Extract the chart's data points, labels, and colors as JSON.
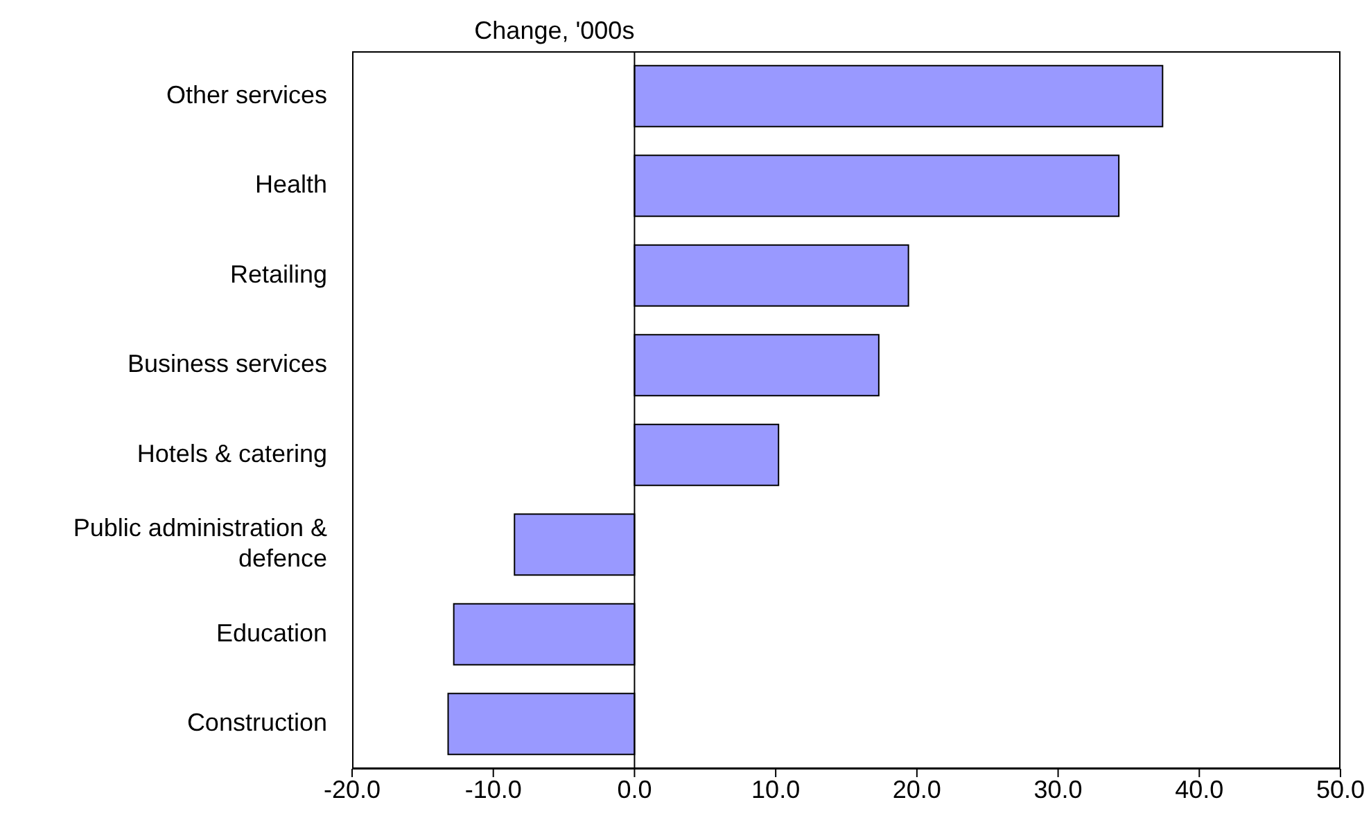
{
  "chart_data": {
    "type": "bar",
    "orientation": "horizontal",
    "title": "Change, '000s",
    "categories": [
      "Other services",
      "Health",
      "Retailing",
      "Business services",
      "Hotels & catering",
      "Public administration & defence",
      "Education",
      "Construction"
    ],
    "values": [
      37.4,
      34.3,
      19.4,
      17.3,
      10.2,
      -8.5,
      -12.8,
      -13.2
    ],
    "color": "#9999ff",
    "xlim": [
      -20,
      50
    ],
    "xticks": [
      {
        "value": -20,
        "label": "-20.0"
      },
      {
        "value": -10,
        "label": "-10.0"
      },
      {
        "value": 0,
        "label": "0.0"
      },
      {
        "value": 10,
        "label": "10.0"
      },
      {
        "value": 20,
        "label": "20.0"
      },
      {
        "value": 30,
        "label": "30.0"
      },
      {
        "value": 40,
        "label": "40.0"
      },
      {
        "value": 50,
        "label": "50.0"
      }
    ],
    "legend": false
  }
}
